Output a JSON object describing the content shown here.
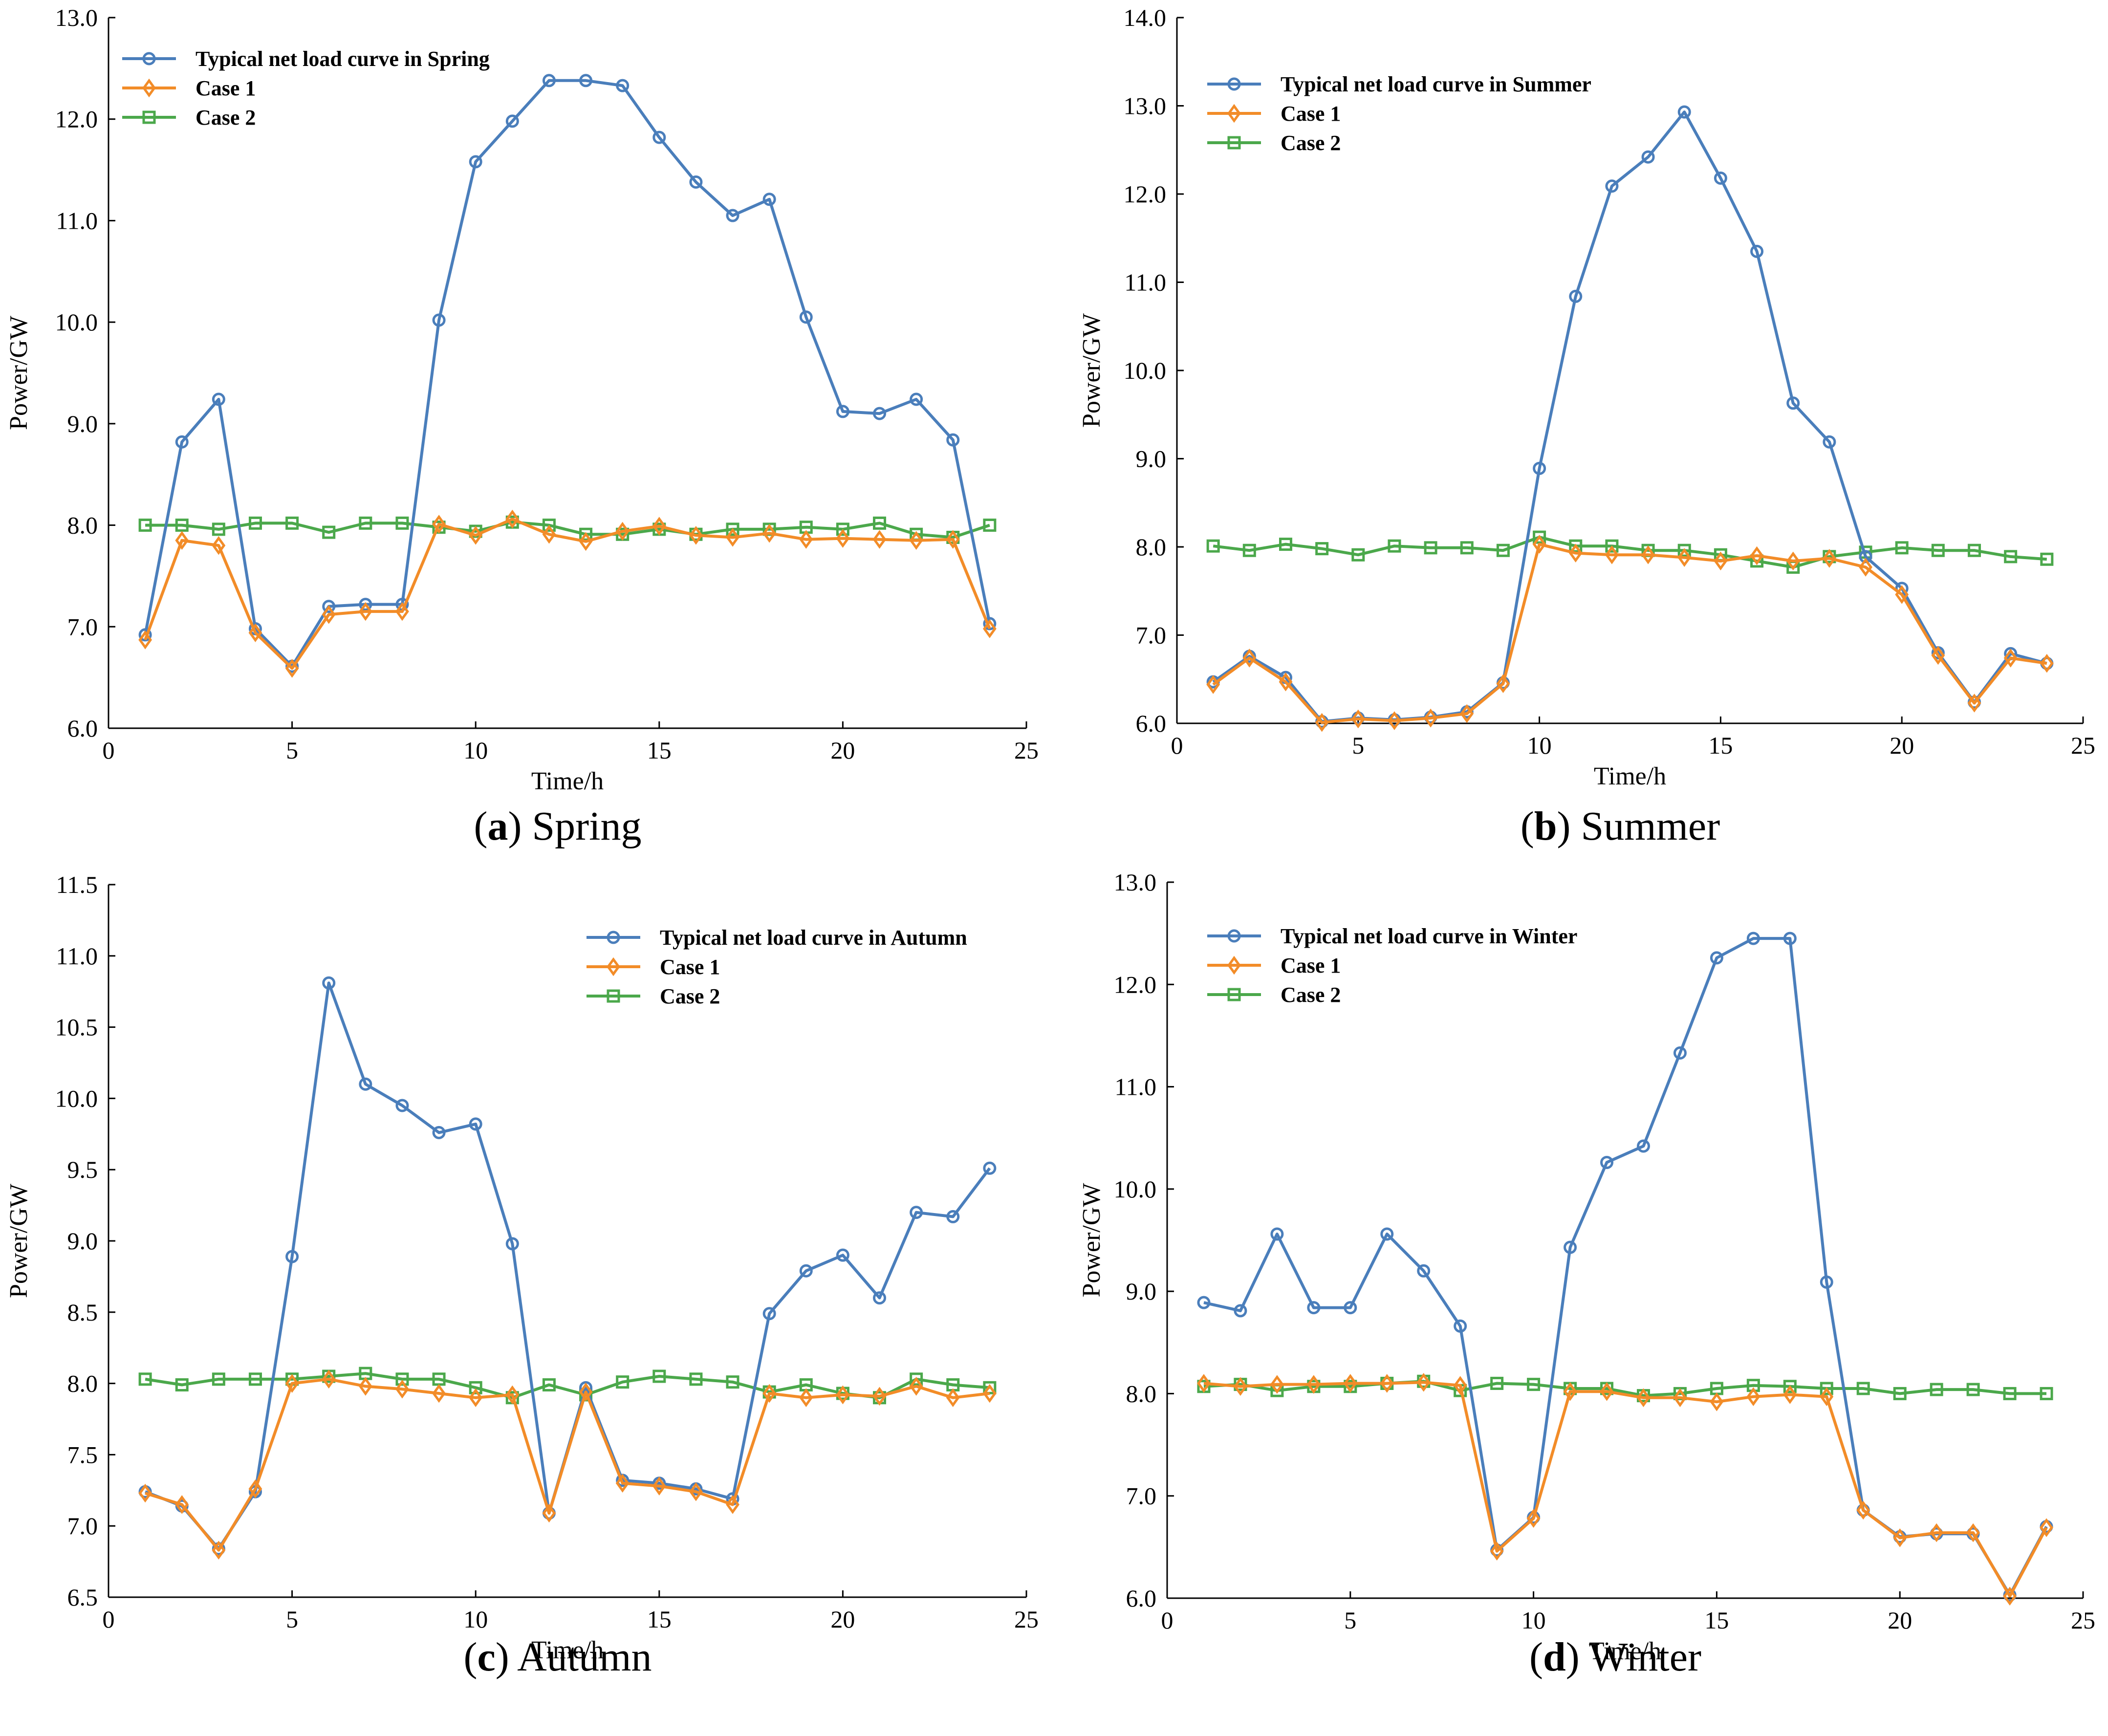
{
  "figure": {
    "colors": {
      "typical": "#4a7ebb",
      "case1": "#f28c28",
      "case2": "#4ba84b",
      "axis": "#000000"
    },
    "markers": {
      "typical": "circle-marker",
      "case1": "diamond-marker",
      "case2": "square-marker"
    }
  },
  "chart_data": [
    {
      "type": "line",
      "caption": {
        "letter": "a",
        "name": "Spring"
      },
      "xlabel": "Time/h",
      "ylabel": "Power/GW",
      "xlim": [
        0,
        25
      ],
      "ylim": [
        6.0,
        13.0
      ],
      "xticks": [
        "0",
        "5",
        "10",
        "15",
        "20",
        "25"
      ],
      "yticks": [
        "6.0",
        "7.0",
        "8.0",
        "9.0",
        "10.0",
        "11.0",
        "12.0",
        "13.0"
      ],
      "legend_position": "top-left",
      "grid": false,
      "x": [
        1,
        2,
        3,
        4,
        5,
        6,
        7,
        8,
        9,
        10,
        11,
        12,
        13,
        14,
        15,
        16,
        17,
        18,
        19,
        20,
        21,
        22,
        23,
        24
      ],
      "series": [
        {
          "key": "typical",
          "name": "Typical net load curve in Spring",
          "values": [
            6.92,
            8.82,
            9.24,
            6.98,
            6.61,
            7.2,
            7.22,
            7.22,
            10.02,
            11.58,
            11.98,
            12.38,
            12.38,
            12.33,
            11.82,
            11.38,
            11.05,
            11.21,
            10.05,
            9.12,
            9.1,
            9.24,
            8.84,
            7.03
          ]
        },
        {
          "key": "case1",
          "name": "Case 1",
          "values": [
            6.87,
            7.85,
            7.8,
            6.94,
            6.59,
            7.12,
            7.15,
            7.15,
            8.01,
            7.9,
            8.06,
            7.91,
            7.84,
            7.94,
            7.99,
            7.9,
            7.88,
            7.92,
            7.86,
            7.87,
            7.86,
            7.85,
            7.86,
            6.98
          ]
        },
        {
          "key": "case2",
          "name": "Case 2",
          "values": [
            8.0,
            8.0,
            7.96,
            8.02,
            8.02,
            7.93,
            8.02,
            8.02,
            7.98,
            7.94,
            8.03,
            8.0,
            7.91,
            7.91,
            7.96,
            7.91,
            7.96,
            7.96,
            7.98,
            7.96,
            8.02,
            7.91,
            7.88,
            8.0
          ]
        }
      ]
    },
    {
      "type": "line",
      "caption": {
        "letter": "b",
        "name": "Summer"
      },
      "xlabel": "Time/h",
      "ylabel": "Power/GW",
      "xlim": [
        0,
        25
      ],
      "ylim": [
        6.0,
        14.0
      ],
      "xticks": [
        "0",
        "5",
        "10",
        "15",
        "20",
        "25"
      ],
      "yticks": [
        "6.0",
        "7.0",
        "8.0",
        "9.0",
        "10.0",
        "11.0",
        "12.0",
        "13.0",
        "14.0"
      ],
      "legend_position": "top-left",
      "grid": false,
      "x": [
        1,
        2,
        3,
        4,
        5,
        6,
        7,
        8,
        9,
        10,
        11,
        12,
        13,
        14,
        15,
        16,
        17,
        18,
        19,
        20,
        21,
        22,
        23,
        24
      ],
      "series": [
        {
          "key": "typical",
          "name": "Typical net load curve in Summer",
          "values": [
            6.47,
            6.76,
            6.52,
            6.02,
            6.06,
            6.04,
            6.07,
            6.13,
            6.46,
            8.89,
            10.84,
            12.09,
            12.42,
            12.93,
            12.18,
            11.35,
            9.63,
            9.19,
            7.89,
            7.53,
            6.8,
            6.24,
            6.79,
            6.68
          ]
        },
        {
          "key": "case1",
          "name": "Case 1",
          "values": [
            6.44,
            6.74,
            6.47,
            6.01,
            6.05,
            6.03,
            6.06,
            6.11,
            6.45,
            8.03,
            7.93,
            7.91,
            7.91,
            7.88,
            7.84,
            7.9,
            7.84,
            7.87,
            7.77,
            7.46,
            6.77,
            6.23,
            6.74,
            6.68
          ]
        },
        {
          "key": "case2",
          "name": "Case 2",
          "values": [
            8.01,
            7.96,
            8.03,
            7.98,
            7.91,
            8.01,
            7.99,
            7.99,
            7.96,
            8.11,
            8.01,
            8.01,
            7.96,
            7.96,
            7.91,
            7.84,
            7.77,
            7.89,
            7.94,
            7.99,
            7.96,
            7.96,
            7.89,
            7.86
          ]
        }
      ]
    },
    {
      "type": "line",
      "caption": {
        "letter": "c",
        "name": "Autumn"
      },
      "xlabel": "Time/h",
      "ylabel": "Power/GW",
      "xlim": [
        0,
        25
      ],
      "ylim": [
        6.5,
        11.5
      ],
      "xticks": [
        "0",
        "5",
        "10",
        "15",
        "20",
        "25"
      ],
      "yticks": [
        "6.5",
        "7.0",
        "7.5",
        "8.0",
        "8.5",
        "9.0",
        "9.5",
        "10.0",
        "10.5",
        "11.0",
        "11.5"
      ],
      "legend_position": "top-right",
      "grid": false,
      "x": [
        1,
        2,
        3,
        4,
        5,
        6,
        7,
        8,
        9,
        10,
        11,
        12,
        13,
        14,
        15,
        16,
        17,
        18,
        19,
        20,
        21,
        22,
        23,
        24
      ],
      "series": [
        {
          "key": "typical",
          "name": "Typical net load curve in Autumn",
          "values": [
            7.24,
            7.14,
            6.84,
            7.24,
            8.89,
            10.81,
            10.1,
            9.95,
            9.76,
            9.82,
            8.98,
            7.09,
            7.97,
            7.32,
            7.3,
            7.26,
            7.19,
            8.49,
            8.79,
            8.9,
            8.6,
            9.2,
            9.17,
            9.51
          ]
        },
        {
          "key": "case1",
          "name": "Case 1",
          "values": [
            7.23,
            7.15,
            6.83,
            7.26,
            8.0,
            8.03,
            7.98,
            7.96,
            7.93,
            7.9,
            7.92,
            7.09,
            7.94,
            7.3,
            7.28,
            7.24,
            7.15,
            7.93,
            7.9,
            7.92,
            7.91,
            7.98,
            7.9,
            7.93
          ]
        },
        {
          "key": "case2",
          "name": "Case 2",
          "values": [
            8.03,
            7.99,
            8.03,
            8.03,
            8.03,
            8.05,
            8.07,
            8.03,
            8.03,
            7.97,
            7.9,
            7.99,
            7.92,
            8.01,
            8.05,
            8.03,
            8.01,
            7.94,
            7.99,
            7.93,
            7.9,
            8.03,
            7.99,
            7.97
          ]
        }
      ]
    },
    {
      "type": "line",
      "caption": {
        "letter": "d",
        "name": "Winter"
      },
      "xlabel": "Time/h",
      "ylabel": "Power/GW",
      "xlim": [
        0,
        25
      ],
      "ylim": [
        6.0,
        13.0
      ],
      "xticks": [
        "0",
        "5",
        "10",
        "15",
        "20",
        "25"
      ],
      "yticks": [
        "6.0",
        "7.0",
        "8.0",
        "9.0",
        "10.0",
        "11.0",
        "12.0",
        "13.0"
      ],
      "legend_position": "top-left",
      "grid": false,
      "x": [
        1,
        2,
        3,
        4,
        5,
        6,
        7,
        8,
        9,
        10,
        11,
        12,
        13,
        14,
        15,
        16,
        17,
        18,
        19,
        20,
        21,
        22,
        23,
        24
      ],
      "series": [
        {
          "key": "typical",
          "name": "Typical net load curve in Winter",
          "values": [
            8.89,
            8.81,
            9.56,
            8.84,
            8.84,
            9.56,
            9.2,
            8.66,
            6.47,
            6.79,
            9.43,
            10.26,
            10.42,
            11.33,
            12.26,
            12.45,
            12.45,
            9.09,
            6.86,
            6.6,
            6.63,
            6.63,
            6.03,
            6.7
          ]
        },
        {
          "key": "case1",
          "name": "Case 1",
          "values": [
            8.1,
            8.07,
            8.09,
            8.09,
            8.1,
            8.1,
            8.11,
            8.08,
            6.46,
            6.78,
            8.02,
            8.02,
            7.96,
            7.96,
            7.92,
            7.97,
            7.99,
            7.97,
            6.86,
            6.59,
            6.64,
            6.64,
            6.02,
            6.69
          ]
        },
        {
          "key": "case2",
          "name": "Case 2",
          "values": [
            8.07,
            8.09,
            8.03,
            8.07,
            8.07,
            8.1,
            8.12,
            8.03,
            8.1,
            8.09,
            8.05,
            8.05,
            7.98,
            8.0,
            8.05,
            8.08,
            8.07,
            8.05,
            8.05,
            8.0,
            8.04,
            8.04,
            8.0,
            8.0
          ]
        }
      ]
    }
  ]
}
